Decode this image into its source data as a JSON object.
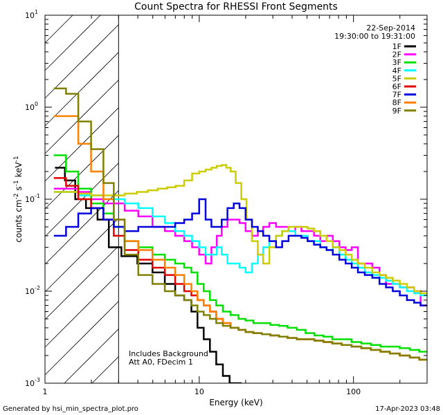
{
  "chart_data": {
    "type": "line",
    "title": "Count Spectra for RHESSI Front Segments",
    "xlabel": "Energy (keV)",
    "ylabel_parts": [
      "counts cm",
      "-2",
      " s",
      "-1",
      " keV",
      "-1"
    ],
    "x_scale": "log",
    "y_scale": "log",
    "xlim": [
      1,
      300
    ],
    "ylim": [
      0.001,
      10
    ],
    "x_ticks": [
      {
        "v": 1,
        "label": "1"
      },
      {
        "v": 10,
        "label": "10"
      },
      {
        "v": 100,
        "label": "100"
      }
    ],
    "y_ticks": [
      {
        "v": 0.001,
        "base": "10",
        "exp": "-3"
      },
      {
        "v": 0.01,
        "base": "10",
        "exp": "-2"
      },
      {
        "v": 0.1,
        "base": "10",
        "exp": "-1"
      },
      {
        "v": 1,
        "base": "10",
        "exp": "0"
      },
      {
        "v": 10,
        "base": "10",
        "exp": "1"
      }
    ],
    "excluded_region_keV": [
      1,
      3
    ],
    "legend_header": [
      "22-Sep-2014",
      "19:30:00 to 19:31:00"
    ],
    "annotation": [
      "Includes Background",
      "Att A0, FDecim 1"
    ],
    "series": [
      {
        "name": "1F",
        "color": "#000000",
        "x": [
          1.25,
          1.45,
          1.7,
          2.0,
          2.4,
          2.8,
          3.5,
          4.5,
          5.5,
          6.5,
          7.5,
          8.5,
          9.3,
          10.2,
          11.2,
          12.3,
          13.5,
          15.0,
          16.5,
          18.0
        ],
        "y": [
          0.22,
          0.16,
          0.1,
          0.08,
          0.06,
          0.03,
          0.024,
          0.02,
          0.016,
          0.012,
          0.009,
          0.008,
          0.006,
          0.004,
          0.003,
          0.0022,
          0.0016,
          0.0012,
          0.001,
          0.001
        ]
      },
      {
        "name": "2F",
        "color": "#ff00ff",
        "x": [
          1.25,
          1.5,
          1.8,
          2.2,
          2.6,
          3.0,
          3.6,
          4.5,
          5.5,
          6.5,
          7.5,
          8.5,
          9.5,
          10.5,
          11.5,
          12.5,
          13.5,
          14.5,
          16.0,
          17.5,
          19.0,
          21.0,
          23.0,
          25.0,
          27.0,
          30.0,
          33.0,
          36.0,
          40.0,
          44.0,
          48.0,
          53.0,
          58.0,
          64.0,
          70.0,
          77.0,
          85.0,
          93.0,
          102.0,
          112.0,
          125.0,
          140.0,
          155.0,
          170.0,
          190.0,
          210.0,
          235.0,
          260.0,
          285.0
        ],
        "y": [
          0.13,
          0.13,
          0.12,
          0.1,
          0.09,
          0.09,
          0.075,
          0.065,
          0.05,
          0.045,
          0.04,
          0.035,
          0.03,
          0.025,
          0.02,
          0.03,
          0.04,
          0.05,
          0.06,
          0.06,
          0.055,
          0.045,
          0.04,
          0.045,
          0.05,
          0.055,
          0.05,
          0.05,
          0.045,
          0.05,
          0.045,
          0.045,
          0.04,
          0.035,
          0.04,
          0.035,
          0.03,
          0.028,
          0.03,
          0.02,
          0.02,
          0.018,
          0.015,
          0.012,
          0.012,
          0.011,
          0.011,
          0.01,
          0.007
        ]
      },
      {
        "name": "3F",
        "color": "#00e000",
        "x": [
          1.25,
          1.5,
          1.8,
          2.2,
          2.6,
          3.0,
          3.6,
          4.5,
          5.5,
          6.5,
          7.5,
          8.5,
          9.3,
          10.2,
          11.2,
          12.3,
          13.5,
          15.0,
          17.0,
          19.0,
          21.0,
          24.0,
          27.0,
          31.0,
          35.0,
          40.0,
          46.0,
          52.0,
          60.0,
          68.0,
          78.0,
          90.0,
          105.0,
          120.0,
          140.0,
          160.0,
          185.0,
          215.0,
          250.0,
          285.0
        ],
        "y": [
          0.3,
          0.2,
          0.13,
          0.09,
          0.07,
          0.05,
          0.035,
          0.03,
          0.025,
          0.022,
          0.02,
          0.018,
          0.016,
          0.012,
          0.01,
          0.008,
          0.007,
          0.006,
          0.0055,
          0.005,
          0.0048,
          0.0045,
          0.0045,
          0.0043,
          0.0042,
          0.004,
          0.0038,
          0.0035,
          0.0033,
          0.0032,
          0.003,
          0.003,
          0.0028,
          0.0027,
          0.0026,
          0.0025,
          0.0025,
          0.0024,
          0.0023,
          0.0022
        ]
      },
      {
        "name": "4F",
        "color": "#00ffff",
        "x": [
          1.25,
          1.5,
          1.8,
          2.2,
          2.6,
          3.0,
          3.6,
          4.5,
          5.5,
          6.5,
          7.5,
          8.5,
          9.5,
          10.5,
          11.5,
          12.5,
          13.5,
          14.5,
          16.0,
          17.5,
          19.0,
          21.0,
          23.0,
          25.0,
          27.0,
          30.0,
          33.0,
          36.0,
          40.0,
          44.0,
          48.0,
          53.0,
          58.0,
          64.0,
          70.0,
          77.0,
          85.0,
          93.0,
          102.0,
          112.0,
          125.0,
          140.0,
          155.0,
          170.0,
          190.0,
          210.0,
          235.0,
          260.0,
          285.0
        ],
        "y": [
          0.12,
          0.12,
          0.11,
          0.11,
          0.1,
          0.1,
          0.09,
          0.08,
          0.065,
          0.055,
          0.045,
          0.04,
          0.035,
          0.03,
          0.025,
          0.025,
          0.03,
          0.025,
          0.02,
          0.02,
          0.018,
          0.016,
          0.02,
          0.025,
          0.03,
          0.035,
          0.04,
          0.045,
          0.045,
          0.04,
          0.04,
          0.035,
          0.035,
          0.03,
          0.028,
          0.03,
          0.025,
          0.022,
          0.02,
          0.018,
          0.016,
          0.015,
          0.014,
          0.013,
          0.012,
          0.011,
          0.01,
          0.0095,
          0.009
        ]
      },
      {
        "name": "5F",
        "color": "#cccc00",
        "x": [
          1.25,
          1.5,
          1.8,
          2.2,
          2.6,
          3.0,
          3.6,
          4.3,
          5.0,
          5.8,
          6.6,
          7.5,
          8.5,
          9.5,
          10.5,
          11.5,
          12.5,
          13.5,
          14.5,
          15.5,
          16.5,
          18.0,
          19.5,
          21.0,
          23.0,
          25.0,
          27.0,
          30.0,
          33.0,
          36.0,
          40.0,
          44.0,
          48.0,
          53.0,
          58.0,
          64.0,
          70.0,
          77.0,
          85.0,
          93.0,
          102.0,
          112.0,
          125.0,
          140.0,
          155.0,
          170.0,
          190.0,
          210.0,
          235.0,
          260.0,
          285.0
        ],
        "y": [
          0.12,
          0.12,
          0.115,
          0.11,
          0.11,
          0.11,
          0.115,
          0.12,
          0.125,
          0.13,
          0.135,
          0.14,
          0.16,
          0.19,
          0.2,
          0.21,
          0.22,
          0.23,
          0.235,
          0.22,
          0.2,
          0.15,
          0.1,
          0.06,
          0.035,
          0.025,
          0.02,
          0.03,
          0.04,
          0.045,
          0.05,
          0.05,
          0.05,
          0.048,
          0.045,
          0.04,
          0.035,
          0.03,
          0.028,
          0.025,
          0.022,
          0.02,
          0.018,
          0.016,
          0.015,
          0.014,
          0.013,
          0.012,
          0.011,
          0.01,
          0.0095
        ]
      },
      {
        "name": "6F",
        "color": "#e00000",
        "x": [
          1.25,
          1.5,
          1.8,
          2.2,
          2.6,
          3.0,
          3.6,
          4.5,
          5.5,
          6.5,
          7.5,
          8.5,
          9.3,
          10.2,
          11.2,
          12.3,
          13.5,
          15.0,
          17.0,
          19.0,
          21.0,
          24.0,
          27.0,
          31.0,
          35.0,
          40.0,
          46.0,
          52.0,
          60.0,
          68.0,
          78.0,
          90.0,
          105.0,
          120.0,
          140.0,
          160.0,
          185.0,
          215.0,
          250.0,
          285.0
        ],
        "y": [
          0.17,
          0.14,
          0.1,
          0.08,
          0.06,
          0.04,
          0.028,
          0.022,
          0.018,
          0.015,
          0.012,
          0.01,
          0.009,
          0.008,
          0.007,
          0.006,
          0.005,
          0.0045,
          0.004,
          0.0038,
          0.0036,
          0.0035,
          0.0034,
          0.0033,
          0.0032,
          0.0031,
          0.003,
          0.003,
          0.0029,
          0.0028,
          0.0027,
          0.0026,
          0.0025,
          0.0024,
          0.0023,
          0.0022,
          0.0021,
          0.002,
          0.0019,
          0.0018
        ]
      },
      {
        "name": "7F",
        "color": "#0000dd",
        "x": [
          1.25,
          1.5,
          1.8,
          2.2,
          2.6,
          3.0,
          3.6,
          4.5,
          5.5,
          6.5,
          7.5,
          8.5,
          9.5,
          10.5,
          11.5,
          12.5,
          13.5,
          14.5,
          16.0,
          17.5,
          19.0,
          21.0,
          23.0,
          25.0,
          27.0,
          30.0,
          33.0,
          36.0,
          40.0,
          44.0,
          48.0,
          53.0,
          58.0,
          64.0,
          70.0,
          77.0,
          85.0,
          93.0,
          102.0,
          112.0,
          125.0,
          140.0,
          155.0,
          170.0,
          190.0,
          210.0,
          235.0,
          260.0,
          285.0
        ],
        "y": [
          0.04,
          0.05,
          0.07,
          0.08,
          0.06,
          0.05,
          0.045,
          0.05,
          0.05,
          0.05,
          0.055,
          0.06,
          0.07,
          0.1,
          0.06,
          0.05,
          0.05,
          0.06,
          0.08,
          0.09,
          0.08,
          0.06,
          0.05,
          0.045,
          0.04,
          0.035,
          0.03,
          0.035,
          0.04,
          0.04,
          0.038,
          0.035,
          0.032,
          0.03,
          0.028,
          0.025,
          0.022,
          0.02,
          0.018,
          0.016,
          0.015,
          0.014,
          0.012,
          0.011,
          0.01,
          0.009,
          0.008,
          0.0075,
          0.007
        ]
      },
      {
        "name": "8F",
        "color": "#ff8000",
        "x": [
          1.25,
          1.5,
          1.8,
          2.2,
          2.6,
          3.0,
          3.6,
          4.5,
          5.5,
          6.5,
          7.5,
          8.5,
          9.3,
          10.2,
          11.2,
          12.3,
          13.5,
          15.0,
          17.0,
          19.0,
          21.0,
          24.0,
          27.0,
          31.0,
          35.0,
          40.0,
          46.0,
          52.0,
          60.0,
          68.0,
          78.0,
          90.0,
          105.0,
          120.0,
          140.0,
          160.0,
          185.0,
          215.0,
          250.0,
          285.0
        ],
        "y": [
          0.8,
          0.8,
          0.4,
          0.2,
          0.1,
          0.06,
          0.035,
          0.028,
          0.022,
          0.018,
          0.015,
          0.012,
          0.01,
          0.008,
          0.007,
          0.006,
          0.005,
          0.0045,
          0.004,
          0.0038,
          0.0036,
          0.0035,
          0.0034,
          0.0033,
          0.0032,
          0.0031,
          0.003,
          0.003,
          0.0029,
          0.0028,
          0.0027,
          0.0026,
          0.0025,
          0.0024,
          0.0023,
          0.0022,
          0.0021,
          0.002,
          0.0019,
          0.0018
        ]
      },
      {
        "name": "9F",
        "color": "#808000",
        "x": [
          1.25,
          1.5,
          1.8,
          2.2,
          2.6,
          3.0,
          3.6,
          4.5,
          5.5,
          6.5,
          7.5,
          8.5,
          9.3,
          10.2,
          11.2,
          12.3,
          13.5,
          15.0,
          17.0,
          19.0,
          21.0,
          24.0,
          27.0,
          31.0,
          35.0,
          40.0,
          46.0,
          52.0,
          60.0,
          68.0,
          78.0,
          90.0,
          105.0,
          120.0,
          140.0,
          160.0,
          185.0,
          215.0,
          250.0,
          285.0
        ],
        "y": [
          1.6,
          1.4,
          0.7,
          0.35,
          0.15,
          0.06,
          0.025,
          0.015,
          0.012,
          0.01,
          0.009,
          0.008,
          0.007,
          0.006,
          0.0055,
          0.005,
          0.0045,
          0.0042,
          0.004,
          0.0038,
          0.0036,
          0.0035,
          0.0034,
          0.0033,
          0.0032,
          0.0031,
          0.003,
          0.003,
          0.0029,
          0.0028,
          0.0027,
          0.0026,
          0.0025,
          0.0024,
          0.0023,
          0.0022,
          0.0021,
          0.002,
          0.0019,
          0.0018
        ]
      }
    ]
  },
  "footer": {
    "generated_by": "Generated by hsi_min_spectra_plot.pro",
    "timestamp": "17-Apr-2023 03:48"
  }
}
